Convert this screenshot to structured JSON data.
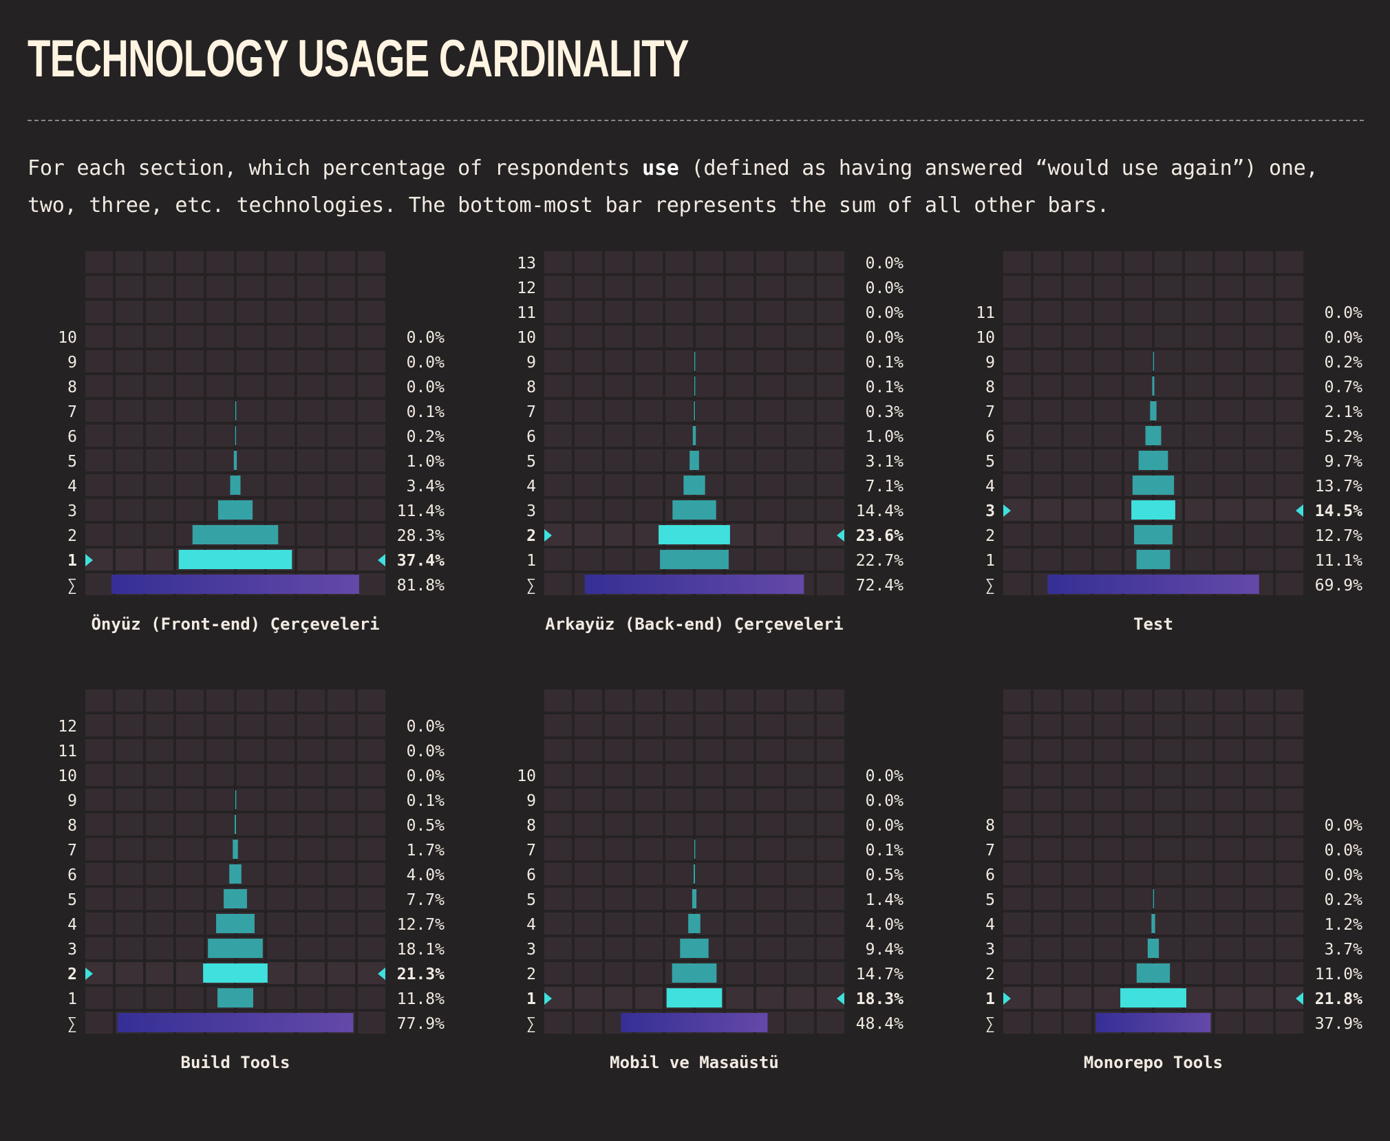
{
  "page": {
    "title": "TECHNOLOGY USAGE CARDINALITY",
    "intro_before": "For each section, which percentage of respondents ",
    "intro_bold": "use",
    "intro_after": " (defined as having answered “would use again”) one, two, three, etc. technologies. The bottom-most bar represents the sum of all other bars."
  },
  "colors": {
    "background": "#252223",
    "cell": "#352c31",
    "bar_teal": "#35a3a5",
    "bar_highlight": "#3fe0dd",
    "sum_bar_start": "#352f95",
    "sum_bar_end": "#6449a8",
    "text": "#f2ebe3"
  },
  "chart_data": [
    {
      "type": "bar",
      "title": "Önyüz (Front-end) Çerçeveleri",
      "categories": [
        "10",
        "9",
        "8",
        "7",
        "6",
        "5",
        "4",
        "3",
        "2",
        "1"
      ],
      "values": [
        0.0,
        0.0,
        0.0,
        0.1,
        0.2,
        1.0,
        3.4,
        11.4,
        28.3,
        37.4
      ],
      "labels": [
        "0.0%",
        "0.0%",
        "0.0%",
        "0.1%",
        "0.2%",
        "1.0%",
        "3.4%",
        "11.4%",
        "28.3%",
        "37.4%"
      ],
      "highlight": "1",
      "sum_symbol": "∑",
      "sum_value": 81.8,
      "sum_label": "81.8%"
    },
    {
      "type": "bar",
      "title": "Arkayüz (Back-end) Çerçeveleri",
      "categories": [
        "13",
        "12",
        "11",
        "10",
        "9",
        "8",
        "7",
        "6",
        "5",
        "4",
        "3",
        "2",
        "1"
      ],
      "values": [
        0.0,
        0.0,
        0.0,
        0.0,
        0.1,
        0.1,
        0.3,
        1.0,
        3.1,
        7.1,
        14.4,
        23.6,
        22.7
      ],
      "labels": [
        "0.0%",
        "0.0%",
        "0.0%",
        "0.0%",
        "0.1%",
        "0.1%",
        "0.3%",
        "1.0%",
        "3.1%",
        "7.1%",
        "14.4%",
        "23.6%",
        "22.7%"
      ],
      "highlight": "2",
      "sum_symbol": "∑",
      "sum_value": 72.4,
      "sum_label": "72.4%"
    },
    {
      "type": "bar",
      "title": "Test",
      "categories": [
        "11",
        "10",
        "9",
        "8",
        "7",
        "6",
        "5",
        "4",
        "3",
        "2",
        "1"
      ],
      "values": [
        0.0,
        0.0,
        0.2,
        0.7,
        2.1,
        5.2,
        9.7,
        13.7,
        14.5,
        12.7,
        11.1
      ],
      "labels": [
        "0.0%",
        "0.0%",
        "0.2%",
        "0.7%",
        "2.1%",
        "5.2%",
        "9.7%",
        "13.7%",
        "14.5%",
        "12.7%",
        "11.1%"
      ],
      "highlight": "3",
      "sum_symbol": "∑",
      "sum_value": 69.9,
      "sum_label": "69.9%"
    },
    {
      "type": "bar",
      "title": "Build Tools",
      "categories": [
        "12",
        "11",
        "10",
        "9",
        "8",
        "7",
        "6",
        "5",
        "4",
        "3",
        "2",
        "1"
      ],
      "values": [
        0.0,
        0.0,
        0.0,
        0.1,
        0.5,
        1.7,
        4.0,
        7.7,
        12.7,
        18.1,
        21.3,
        11.8
      ],
      "labels": [
        "0.0%",
        "0.0%",
        "0.0%",
        "0.1%",
        "0.5%",
        "1.7%",
        "4.0%",
        "7.7%",
        "12.7%",
        "18.1%",
        "21.3%",
        "11.8%"
      ],
      "highlight": "2",
      "sum_symbol": "∑",
      "sum_value": 77.9,
      "sum_label": "77.9%"
    },
    {
      "type": "bar",
      "title": "Mobil ve Masaüstü",
      "categories": [
        "10",
        "9",
        "8",
        "7",
        "6",
        "5",
        "4",
        "3",
        "2",
        "1"
      ],
      "values": [
        0.0,
        0.0,
        0.0,
        0.1,
        0.5,
        1.4,
        4.0,
        9.4,
        14.7,
        18.3
      ],
      "labels": [
        "0.0%",
        "0.0%",
        "0.0%",
        "0.1%",
        "0.5%",
        "1.4%",
        "4.0%",
        "9.4%",
        "14.7%",
        "18.3%"
      ],
      "highlight": "1",
      "sum_symbol": "∑",
      "sum_value": 48.4,
      "sum_label": "48.4%"
    },
    {
      "type": "bar",
      "title": "Monorepo Tools",
      "categories": [
        "8",
        "7",
        "6",
        "5",
        "4",
        "3",
        "2",
        "1"
      ],
      "values": [
        0.0,
        0.0,
        0.0,
        0.2,
        1.2,
        3.7,
        11.0,
        21.8
      ],
      "labels": [
        "0.0%",
        "0.0%",
        "0.0%",
        "0.2%",
        "1.2%",
        "3.7%",
        "11.0%",
        "21.8%"
      ],
      "highlight": "1",
      "sum_symbol": "∑",
      "sum_value": 37.9,
      "sum_label": "37.9%"
    }
  ]
}
